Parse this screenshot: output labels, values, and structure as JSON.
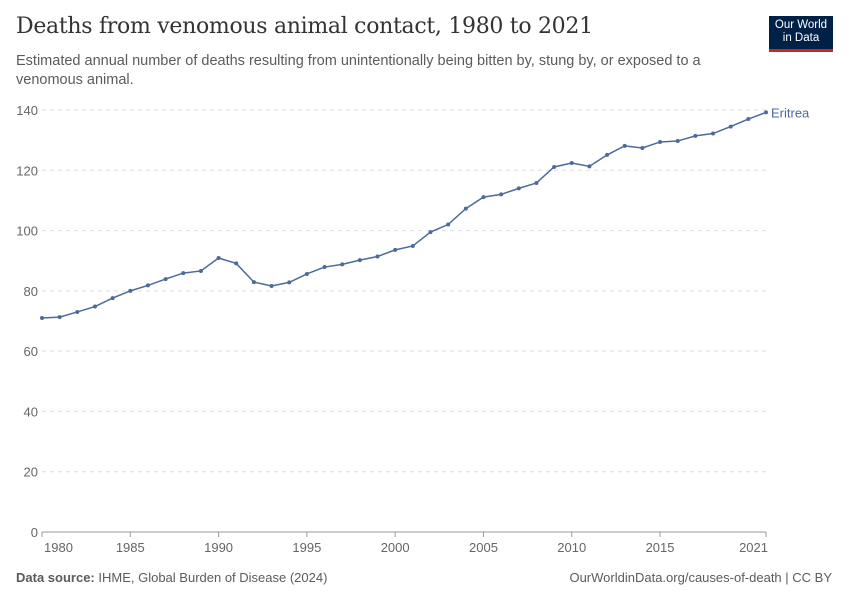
{
  "header": {
    "title": "Deaths from venomous animal contact, 1980 to 2021",
    "subtitle": "Estimated annual number of deaths resulting from unintentionally being bitten by, stung by, or exposed to a venomous animal.",
    "logo": "Our World in Data"
  },
  "footer": {
    "source_label": "Data source:",
    "source": "IHME, Global Burden of Disease (2024)",
    "url": "OurWorldinData.org/causes-of-death | CC BY"
  },
  "chart_data": {
    "type": "line",
    "title": "Deaths from venomous animal contact, 1980 to 2021",
    "xlim": [
      1980,
      2021
    ],
    "ylim": [
      0,
      140
    ],
    "grid": "horizontal dashed",
    "x_ticks": [
      1980,
      1985,
      1990,
      1995,
      2000,
      2005,
      2010,
      2015,
      2021
    ],
    "y_ticks": [
      0,
      20,
      40,
      60,
      80,
      100,
      120,
      140
    ],
    "line_color": "#4c6a9c",
    "series": [
      {
        "name": "Eritrea",
        "x": [
          1980,
          1981,
          1982,
          1983,
          1984,
          1985,
          1986,
          1987,
          1988,
          1989,
          1990,
          1991,
          1992,
          1993,
          1994,
          1995,
          1996,
          1997,
          1998,
          1999,
          2000,
          2001,
          2002,
          2003,
          2004,
          2005,
          2006,
          2007,
          2008,
          2009,
          2010,
          2011,
          2012,
          2013,
          2014,
          2015,
          2016,
          2017,
          2018,
          2019,
          2020,
          2021
        ],
        "values": [
          71.0,
          71.3,
          73.0,
          74.8,
          77.6,
          80.0,
          81.8,
          83.9,
          85.9,
          86.6,
          90.9,
          89.1,
          82.9,
          81.6,
          82.8,
          85.6,
          87.9,
          88.8,
          90.2,
          91.4,
          93.6,
          94.9,
          99.5,
          102.0,
          107.3,
          111.1,
          112.0,
          114.0,
          115.8,
          121.1,
          122.4,
          121.3,
          125.1,
          128.1,
          127.4,
          129.4,
          129.7,
          131.4,
          132.2,
          134.5,
          137.0,
          139.2
        ]
      }
    ]
  }
}
